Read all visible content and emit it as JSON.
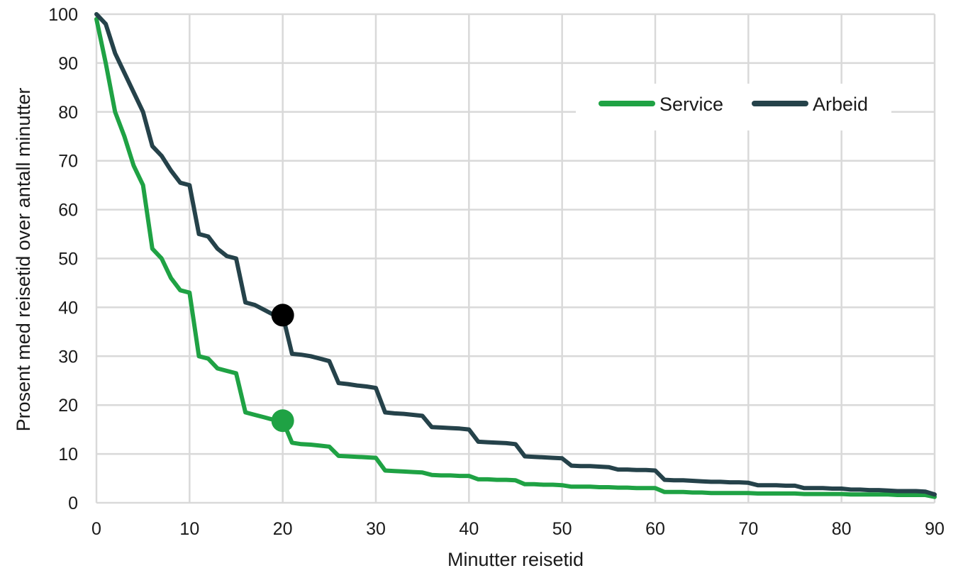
{
  "chart_data": {
    "type": "line",
    "title": "",
    "xlabel": "Minutter reisetid",
    "ylabel": "Prosent med reisetid over antall minutter",
    "xlim": [
      0,
      90
    ],
    "ylim": [
      0,
      100
    ],
    "x_ticks": [
      0,
      10,
      20,
      30,
      40,
      50,
      60,
      70,
      80,
      90
    ],
    "y_ticks": [
      0,
      10,
      20,
      30,
      40,
      50,
      60,
      70,
      80,
      90,
      100
    ],
    "grid": true,
    "legend": {
      "placement": "top-right"
    },
    "x": [
      0,
      1,
      2,
      3,
      4,
      5,
      6,
      7,
      8,
      9,
      10,
      11,
      12,
      13,
      14,
      15,
      16,
      17,
      18,
      19,
      20,
      21,
      22,
      23,
      24,
      25,
      26,
      27,
      28,
      29,
      30,
      31,
      32,
      33,
      34,
      35,
      36,
      37,
      38,
      39,
      40,
      41,
      42,
      43,
      44,
      45,
      46,
      47,
      48,
      49,
      50,
      51,
      52,
      53,
      54,
      55,
      56,
      57,
      58,
      59,
      60,
      61,
      62,
      63,
      64,
      65,
      66,
      67,
      68,
      69,
      70,
      71,
      72,
      73,
      74,
      75,
      76,
      77,
      78,
      79,
      80,
      81,
      82,
      83,
      84,
      85,
      86,
      87,
      88,
      89,
      90
    ],
    "series": [
      {
        "name": "Service",
        "color": "#1fa244",
        "values": [
          99,
          90,
          80,
          75,
          69,
          65,
          52,
          50,
          46,
          43.5,
          43,
          30,
          29.5,
          27.5,
          27,
          26.5,
          18.5,
          18,
          17.5,
          17,
          16.8,
          12.3,
          12,
          11.9,
          11.7,
          11.5,
          9.6,
          9.5,
          9.4,
          9.3,
          9.2,
          6.6,
          6.5,
          6.4,
          6.3,
          6.2,
          5.7,
          5.6,
          5.6,
          5.5,
          5.5,
          4.8,
          4.8,
          4.7,
          4.7,
          4.6,
          3.8,
          3.8,
          3.7,
          3.7,
          3.6,
          3.3,
          3.3,
          3.3,
          3.2,
          3.2,
          3.1,
          3.1,
          3.0,
          3.0,
          3.0,
          2.2,
          2.2,
          2.2,
          2.1,
          2.1,
          2.0,
          2.0,
          2.0,
          2.0,
          2.0,
          1.9,
          1.9,
          1.9,
          1.9,
          1.9,
          1.8,
          1.8,
          1.8,
          1.8,
          1.8,
          1.7,
          1.7,
          1.7,
          1.7,
          1.7,
          1.6,
          1.6,
          1.6,
          1.6,
          1.2
        ]
      },
      {
        "name": "Arbeid",
        "color": "#25424a",
        "values": [
          100,
          98,
          92,
          88,
          84,
          80,
          73,
          71,
          68,
          65.5,
          65,
          55,
          54.5,
          52,
          50.5,
          50,
          41,
          40.5,
          39.5,
          38.5,
          38.4,
          30.5,
          30.3,
          30,
          29.5,
          29,
          24.5,
          24.3,
          24,
          23.8,
          23.5,
          18.5,
          18.3,
          18.2,
          18,
          17.8,
          15.5,
          15.4,
          15.3,
          15.2,
          15,
          12.5,
          12.4,
          12.3,
          12.2,
          12,
          9.5,
          9.4,
          9.3,
          9.2,
          9.1,
          7.6,
          7.5,
          7.5,
          7.4,
          7.3,
          6.8,
          6.8,
          6.7,
          6.7,
          6.6,
          4.7,
          4.6,
          4.6,
          4.5,
          4.4,
          4.3,
          4.3,
          4.2,
          4.2,
          4.1,
          3.6,
          3.6,
          3.6,
          3.5,
          3.5,
          3.0,
          3.0,
          3.0,
          2.9,
          2.9,
          2.7,
          2.7,
          2.6,
          2.6,
          2.5,
          2.4,
          2.4,
          2.4,
          2.3,
          1.7
        ]
      }
    ],
    "markers": [
      {
        "series": "Service",
        "x": 20,
        "y": 16.8,
        "color": "#1fa244"
      },
      {
        "series": "Arbeid",
        "x": 20,
        "y": 38.4,
        "color": "#000000"
      }
    ]
  }
}
